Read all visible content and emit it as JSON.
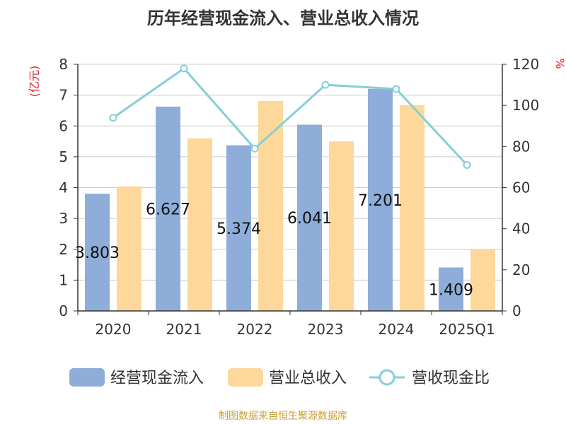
{
  "chart_data": {
    "type": "bar",
    "title": "历年经营现金流入、营业总收入情况",
    "categories": [
      "2020",
      "2021",
      "2022",
      "2023",
      "2024",
      "2025Q1"
    ],
    "series": [
      {
        "name": "经营现金流入",
        "type": "bar",
        "axis": "left",
        "color": "#8eadd9",
        "values": [
          3.803,
          6.627,
          5.374,
          6.041,
          7.201,
          1.409
        ],
        "data_labels": [
          "3.803",
          "6.627",
          "5.374",
          "6.041",
          "7.201",
          "1.409"
        ]
      },
      {
        "name": "营业总收入",
        "type": "bar",
        "axis": "left",
        "color": "#fdd89a",
        "values": [
          4.04,
          5.6,
          6.81,
          5.5,
          6.68,
          1.99
        ]
      },
      {
        "name": "营收现金比",
        "type": "line",
        "axis": "right",
        "color": "#85cfd6",
        "values": [
          94,
          118,
          79,
          110,
          108,
          71
        ]
      }
    ],
    "y_left": {
      "label": "(亿元)",
      "range": [
        0,
        8
      ],
      "ticks": [
        0,
        1,
        2,
        3,
        4,
        5,
        6,
        7,
        8
      ]
    },
    "y_right": {
      "label": "%",
      "range": [
        0,
        120
      ],
      "ticks": [
        0,
        20,
        40,
        60,
        80,
        100,
        120
      ]
    },
    "grid": true,
    "legend_position": "bottom"
  },
  "source": "制图数据来自恒生聚源数据库",
  "colors": {
    "axis_label": "#e02020",
    "grid": "#cccccc",
    "axis": "#333333",
    "text": "#333333"
  }
}
